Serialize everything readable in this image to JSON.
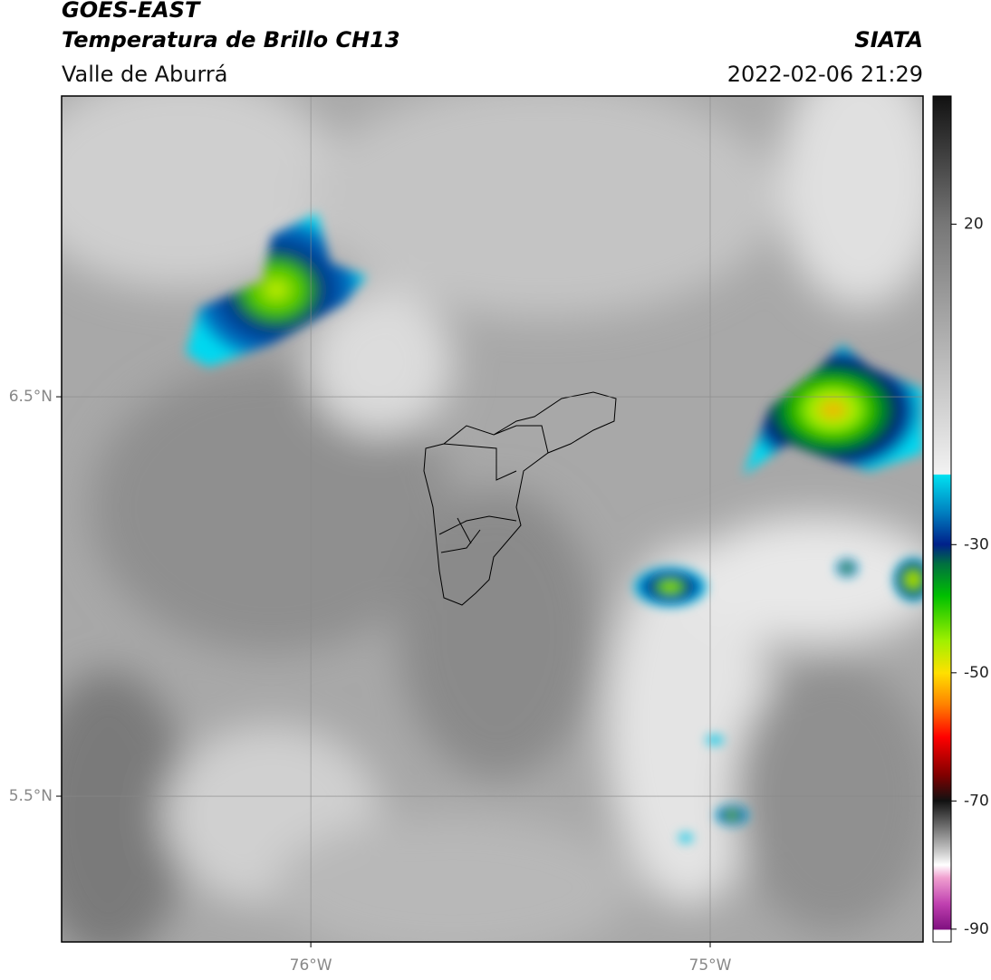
{
  "header": {
    "title": "GOES-EAST",
    "subtitle": "Temperatura de Brillo CH13",
    "region": "Valle de Aburrá",
    "source": "SIATA",
    "datetime": "2022-02-06 21:29"
  },
  "map": {
    "xlim": [
      -76.624,
      -74.467
    ],
    "ylim": [
      5.135,
      7.253
    ],
    "xticks": [
      {
        "value": -76,
        "label": "76°W"
      },
      {
        "value": -75,
        "label": "75°W"
      }
    ],
    "yticks": [
      {
        "value": 6.5,
        "label": "6.5°N"
      },
      {
        "value": 5.5,
        "label": "5.5°N"
      }
    ],
    "grid": true
  },
  "colorbar": {
    "lim": [
      -92,
      40
    ],
    "ticks": [
      20,
      -30,
      -50,
      -70,
      -90
    ]
  }
}
